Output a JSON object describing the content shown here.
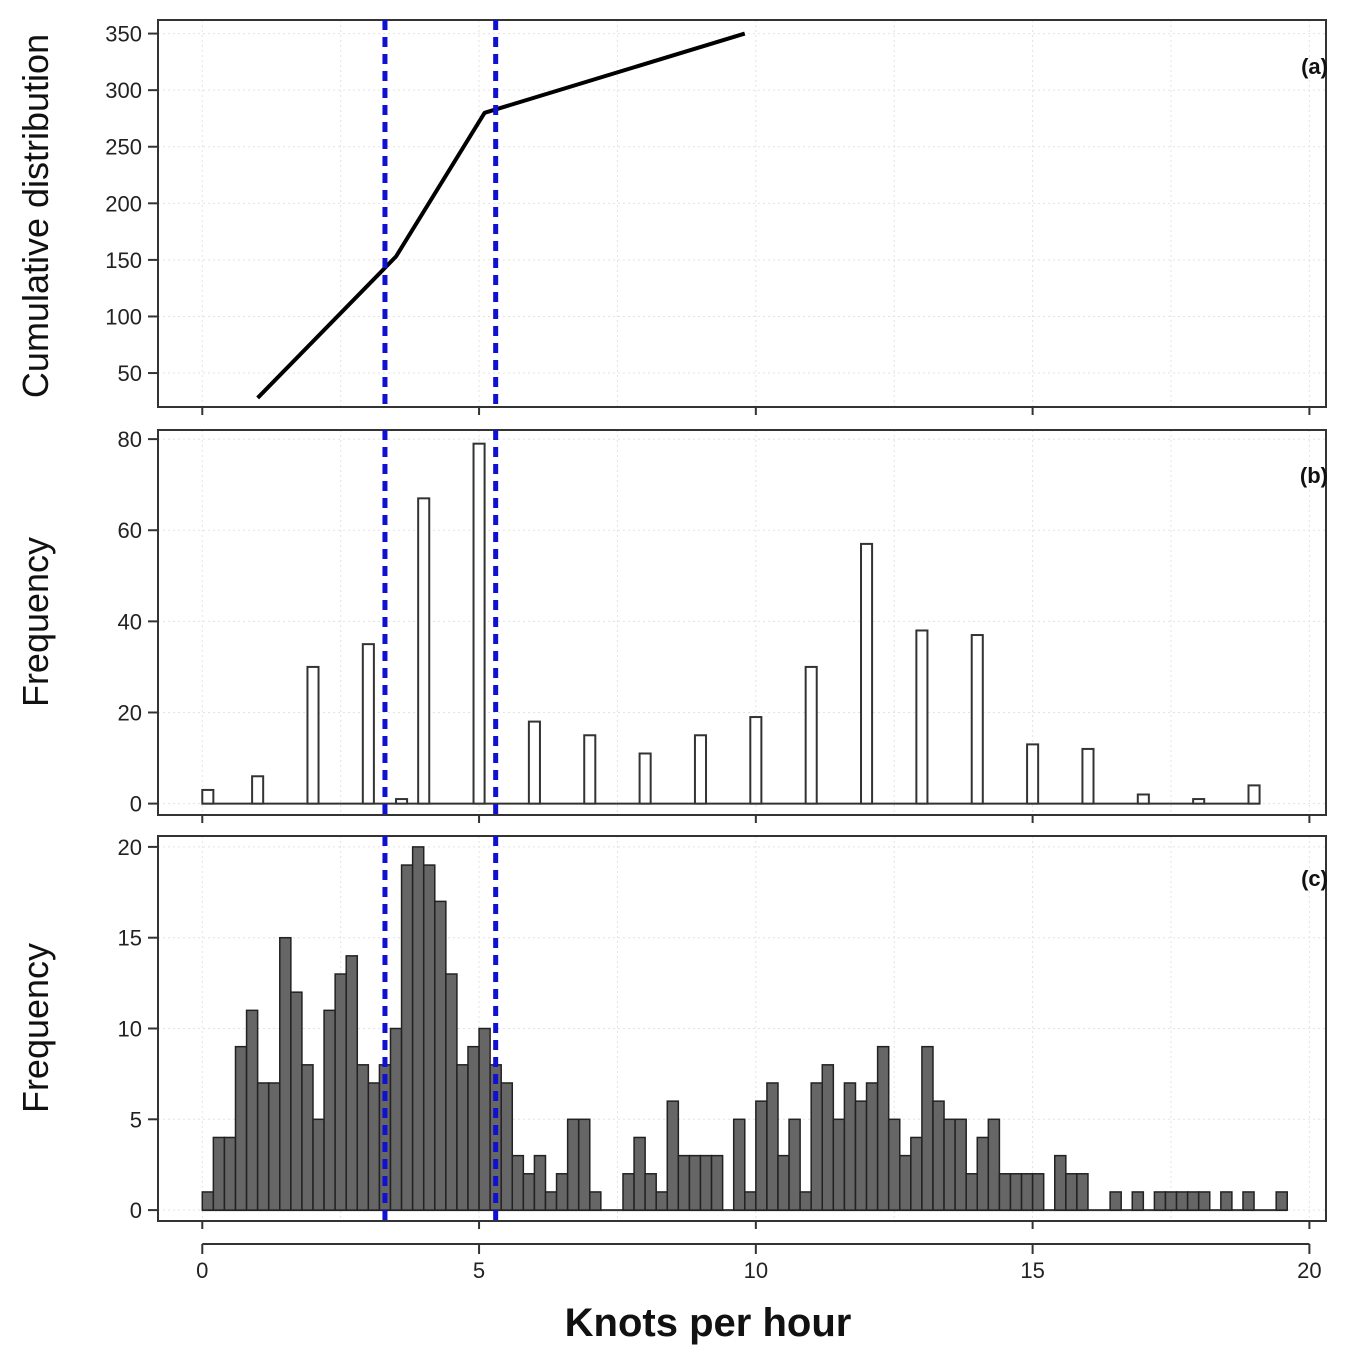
{
  "figure": {
    "xlabel": "Knots per hour",
    "x_ticks": [
      0,
      5,
      10,
      15,
      20
    ],
    "xlim": [
      -0.8,
      20.3
    ],
    "reference_lines": {
      "x": [
        3.3,
        5.3
      ],
      "color": "#1010d0",
      "style": "dotted"
    },
    "grid": true
  },
  "panels": [
    {
      "id": "a",
      "tag": "(a)",
      "ylabel": "Cumulative distribution",
      "y_ticks": [
        50,
        100,
        150,
        200,
        250,
        300,
        350
      ]
    },
    {
      "id": "b",
      "tag": "(b)",
      "ylabel": "Frequency",
      "y_ticks": [
        0,
        20,
        40,
        60,
        80
      ]
    },
    {
      "id": "c",
      "tag": "(c)",
      "ylabel": "Frequency",
      "y_ticks": [
        0,
        5,
        10,
        15,
        20
      ]
    }
  ],
  "chart_data": [
    {
      "panel": "a",
      "type": "line",
      "x": [
        1.0,
        3.5,
        5.1,
        9.8
      ],
      "y": [
        28,
        153,
        280,
        350
      ],
      "ylim": [
        20,
        362
      ],
      "color": "#000000"
    },
    {
      "panel": "b",
      "type": "bar",
      "x": [
        0,
        0.9,
        1.9,
        2.9,
        3.5,
        3.9,
        4.9,
        5.9,
        6.9,
        7.9,
        8.9,
        9.9,
        10.9,
        11.9,
        12.9,
        13.9,
        14.9,
        15.9,
        16.9,
        17.9,
        18.9
      ],
      "values": [
        3,
        6,
        30,
        35,
        1,
        67,
        79,
        18,
        15,
        11,
        15,
        19,
        30,
        57,
        38,
        37,
        13,
        12,
        2,
        1,
        4
      ],
      "bar_width": 0.2,
      "ylim": [
        -2.5,
        82
      ],
      "fill": "#ffffff"
    },
    {
      "panel": "c",
      "type": "bar",
      "bin_start": 0,
      "bin_width": 0.2,
      "values": [
        1,
        4,
        4,
        9,
        11,
        7,
        7,
        15,
        12,
        8,
        5,
        11,
        13,
        14,
        8,
        7,
        8,
        10,
        19,
        20,
        19,
        17,
        13,
        8,
        9,
        10,
        8,
        7,
        3,
        2,
        3,
        1,
        2,
        5,
        5,
        1,
        0,
        0,
        2,
        4,
        2,
        1,
        6,
        3,
        3,
        3,
        3,
        0,
        5,
        1,
        6,
        7,
        3,
        5,
        1,
        7,
        8,
        5,
        7,
        6,
        7,
        9,
        5,
        3,
        4,
        9,
        6,
        5,
        5,
        2,
        4,
        5,
        2,
        2,
        2,
        2,
        0,
        3,
        2,
        2,
        0,
        0,
        1,
        0,
        1,
        0,
        1,
        1,
        1,
        1,
        1,
        0,
        1,
        0,
        1,
        0,
        0,
        1
      ],
      "ylim": [
        -0.6,
        20.6
      ],
      "fill": "#666666"
    }
  ]
}
